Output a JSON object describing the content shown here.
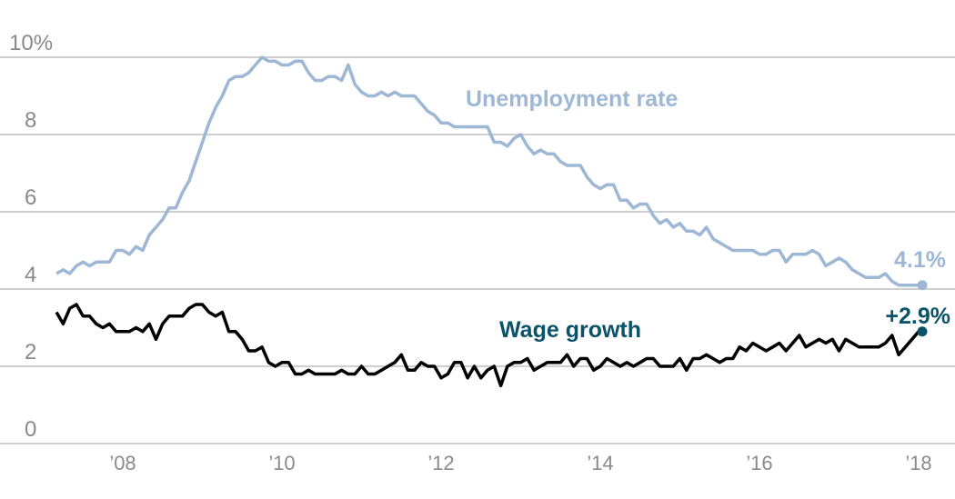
{
  "chart_data": {
    "type": "line",
    "title": "",
    "xlabel": "",
    "ylabel": "",
    "ylim": [
      0,
      10
    ],
    "xlim": [
      "2007-03",
      "2018-01"
    ],
    "grid": true,
    "y_ticks": [
      {
        "value": 0,
        "label": "0"
      },
      {
        "value": 2,
        "label": "2"
      },
      {
        "value": 4,
        "label": "4"
      },
      {
        "value": 6,
        "label": "6"
      },
      {
        "value": 8,
        "label": "8"
      },
      {
        "value": 10,
        "label": "10%"
      }
    ],
    "x_ticks": [
      {
        "value": 2008,
        "label": "’08"
      },
      {
        "value": 2010,
        "label": "’10"
      },
      {
        "value": 2012,
        "label": "’12"
      },
      {
        "value": 2014,
        "label": "’14"
      },
      {
        "value": 2016,
        "label": "’16"
      },
      {
        "value": 2018,
        "label": "’18"
      }
    ],
    "start_month": "2007-03",
    "series": [
      {
        "name": "Unemployment rate",
        "color": "#9db7d5",
        "end_label": "4.1%",
        "values": [
          4.4,
          4.5,
          4.4,
          4.6,
          4.7,
          4.6,
          4.7,
          4.7,
          4.7,
          5.0,
          5.0,
          4.9,
          5.1,
          5.0,
          5.4,
          5.6,
          5.8,
          6.1,
          6.1,
          6.5,
          6.8,
          7.3,
          7.8,
          8.3,
          8.7,
          9.0,
          9.4,
          9.5,
          9.5,
          9.6,
          9.8,
          10.0,
          9.9,
          9.9,
          9.8,
          9.8,
          9.9,
          9.9,
          9.6,
          9.4,
          9.4,
          9.5,
          9.5,
          9.4,
          9.8,
          9.3,
          9.1,
          9.0,
          9.0,
          9.1,
          9.0,
          9.1,
          9.0,
          9.0,
          9.0,
          8.8,
          8.6,
          8.5,
          8.3,
          8.3,
          8.2,
          8.2,
          8.2,
          8.2,
          8.2,
          8.2,
          7.8,
          7.8,
          7.7,
          7.9,
          8.0,
          7.7,
          7.5,
          7.6,
          7.5,
          7.5,
          7.3,
          7.2,
          7.2,
          7.2,
          6.9,
          6.7,
          6.6,
          6.7,
          6.7,
          6.3,
          6.3,
          6.1,
          6.2,
          6.2,
          5.9,
          5.7,
          5.8,
          5.6,
          5.7,
          5.5,
          5.5,
          5.4,
          5.6,
          5.3,
          5.2,
          5.1,
          5.0,
          5.0,
          5.0,
          5.0,
          4.9,
          4.9,
          5.0,
          5.0,
          4.7,
          4.9,
          4.9,
          4.9,
          5.0,
          4.9,
          4.6,
          4.7,
          4.8,
          4.7,
          4.5,
          4.4,
          4.3,
          4.3,
          4.3,
          4.4,
          4.2,
          4.1,
          4.1,
          4.1,
          4.1
        ]
      },
      {
        "name": "Wage growth",
        "color": "#000000",
        "label_color": "#0b5369",
        "end_label": "+2.9%",
        "values": [
          3.4,
          3.1,
          3.5,
          3.6,
          3.3,
          3.3,
          3.1,
          3.0,
          3.1,
          2.9,
          2.9,
          2.9,
          3.0,
          2.9,
          3.1,
          2.7,
          3.1,
          3.3,
          3.3,
          3.3,
          3.5,
          3.6,
          3.6,
          3.4,
          3.3,
          3.4,
          2.9,
          2.9,
          2.7,
          2.4,
          2.4,
          2.5,
          2.1,
          2.0,
          2.1,
          2.1,
          1.8,
          1.8,
          1.9,
          1.8,
          1.8,
          1.8,
          1.8,
          1.9,
          1.8,
          1.8,
          2.0,
          1.8,
          1.8,
          1.9,
          2.0,
          2.1,
          2.3,
          1.9,
          1.9,
          2.1,
          2.0,
          2.0,
          1.7,
          1.8,
          2.1,
          2.1,
          1.7,
          2.0,
          1.7,
          1.9,
          2.0,
          1.5,
          2.0,
          2.1,
          2.1,
          2.2,
          1.9,
          2.0,
          2.1,
          2.1,
          2.1,
          2.3,
          2.0,
          2.2,
          2.2,
          1.9,
          2.0,
          2.2,
          2.1,
          2.0,
          2.1,
          2.0,
          2.1,
          2.2,
          2.2,
          2.0,
          2.0,
          2.0,
          2.2,
          1.9,
          2.2,
          2.2,
          2.3,
          2.2,
          2.1,
          2.2,
          2.2,
          2.5,
          2.4,
          2.6,
          2.5,
          2.4,
          2.5,
          2.6,
          2.4,
          2.6,
          2.8,
          2.5,
          2.6,
          2.7,
          2.6,
          2.7,
          2.4,
          2.7,
          2.6,
          2.5,
          2.5,
          2.5,
          2.5,
          2.6,
          2.8,
          2.3,
          2.5,
          2.7,
          2.9
        ]
      }
    ]
  }
}
